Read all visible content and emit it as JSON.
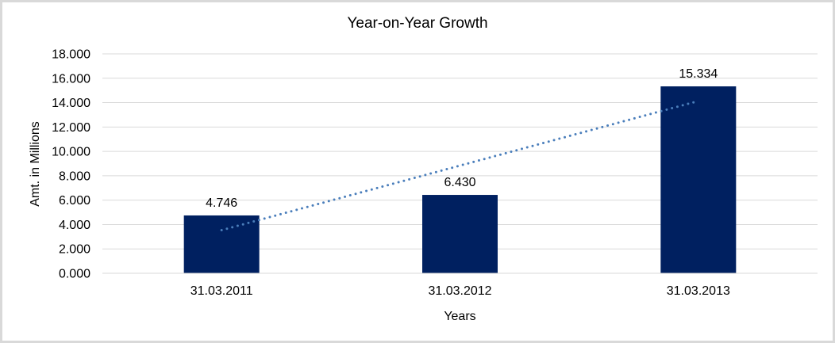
{
  "chart_data": {
    "type": "bar",
    "title": "Year-on-Year Growth",
    "xlabel": "Years",
    "ylabel": "Amt. in Millions",
    "categories": [
      "31.03.2011",
      "31.03.2012",
      "31.03.2013"
    ],
    "values": [
      4.746,
      6.43,
      15.334
    ],
    "data_labels": [
      "4.746",
      "6.430",
      "15.334"
    ],
    "y_ticks": [
      {
        "value": 0,
        "label": "0.000"
      },
      {
        "value": 2,
        "label": "2.000"
      },
      {
        "value": 4,
        "label": "4.000"
      },
      {
        "value": 6,
        "label": "6.000"
      },
      {
        "value": 8,
        "label": "8.000"
      },
      {
        "value": 10,
        "label": "10.000"
      },
      {
        "value": 12,
        "label": "12.000"
      },
      {
        "value": 14,
        "label": "14.000"
      },
      {
        "value": 16,
        "label": "16.000"
      },
      {
        "value": 18,
        "label": "18.000"
      }
    ],
    "ylim": [
      0,
      18
    ],
    "grid": true,
    "legend": "none",
    "trendline": {
      "type": "linear",
      "style": "dotted",
      "start_value": 3.54,
      "end_value": 14.13,
      "color": "#4a7ebb"
    },
    "colors": {
      "bar": "#002060",
      "gridline": "#d9d9d9",
      "axis_line": "#d9d9d9",
      "text": "#000000",
      "frame_border": "#d9d9d9"
    }
  }
}
